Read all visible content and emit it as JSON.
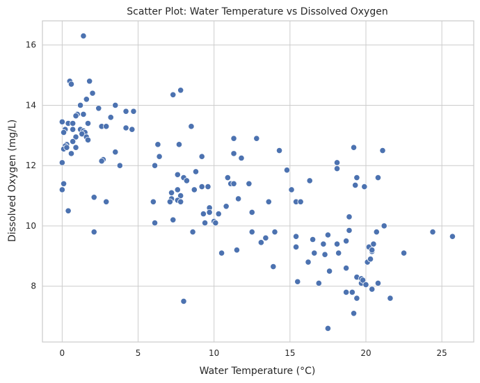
{
  "chart_data": {
    "type": "scatter",
    "title": "Scatter Plot: Water Temperature vs Dissolved Oxygen",
    "xlabel": "Water Temperature (°C)",
    "ylabel": "Dissolved Oxygen (mg/L)",
    "xlim": [
      -1.3,
      27.1
    ],
    "ylim": [
      6.15,
      16.8
    ],
    "xticks": [
      0,
      5,
      10,
      15,
      20,
      25
    ],
    "yticks": [
      8,
      10,
      12,
      14,
      16
    ],
    "xtick_labels": [
      "0",
      "5",
      "10",
      "15",
      "20",
      "25"
    ],
    "ytick_labels": [
      "8",
      "10",
      "12",
      "14",
      "16"
    ],
    "grid": true,
    "color": "#4c72b0",
    "points": [
      {
        "x": 1.4,
        "y": 16.3
      },
      {
        "x": 0.5,
        "y": 14.8
      },
      {
        "x": 1.8,
        "y": 14.8
      },
      {
        "x": 0.6,
        "y": 14.7
      },
      {
        "x": 2.0,
        "y": 14.4
      },
      {
        "x": 1.6,
        "y": 14.2
      },
      {
        "x": 1.2,
        "y": 14.0
      },
      {
        "x": 3.5,
        "y": 14.0
      },
      {
        "x": 2.4,
        "y": 13.9
      },
      {
        "x": 4.2,
        "y": 13.8
      },
      {
        "x": 4.7,
        "y": 13.8
      },
      {
        "x": 1.0,
        "y": 13.7
      },
      {
        "x": 0.9,
        "y": 13.65
      },
      {
        "x": 1.4,
        "y": 13.7
      },
      {
        "x": 3.2,
        "y": 13.6
      },
      {
        "x": 0.0,
        "y": 13.45
      },
      {
        "x": 0.4,
        "y": 13.4
      },
      {
        "x": 0.7,
        "y": 13.4
      },
      {
        "x": 1.7,
        "y": 13.4
      },
      {
        "x": 2.6,
        "y": 13.3
      },
      {
        "x": 2.9,
        "y": 13.3
      },
      {
        "x": 4.2,
        "y": 13.25
      },
      {
        "x": 4.6,
        "y": 13.2
      },
      {
        "x": 0.2,
        "y": 13.2
      },
      {
        "x": 0.7,
        "y": 13.2
      },
      {
        "x": 1.2,
        "y": 13.2
      },
      {
        "x": 1.4,
        "y": 13.15
      },
      {
        "x": 1.5,
        "y": 13.1
      },
      {
        "x": 0.1,
        "y": 13.1
      },
      {
        "x": 1.3,
        "y": 13.05
      },
      {
        "x": 0.9,
        "y": 12.95
      },
      {
        "x": 1.6,
        "y": 12.95
      },
      {
        "x": 1.7,
        "y": 12.85
      },
      {
        "x": 0.7,
        "y": 12.8
      },
      {
        "x": 0.3,
        "y": 12.7
      },
      {
        "x": 0.2,
        "y": 12.65
      },
      {
        "x": 0.9,
        "y": 12.6
      },
      {
        "x": 0.1,
        "y": 12.55
      },
      {
        "x": 0.3,
        "y": 12.6
      },
      {
        "x": 0.6,
        "y": 12.4
      },
      {
        "x": 3.5,
        "y": 12.45
      },
      {
        "x": 2.7,
        "y": 12.2
      },
      {
        "x": 2.6,
        "y": 12.15
      },
      {
        "x": 0.0,
        "y": 12.1
      },
      {
        "x": 3.8,
        "y": 12.0
      },
      {
        "x": 0.1,
        "y": 11.4
      },
      {
        "x": 0.0,
        "y": 11.2
      },
      {
        "x": 2.1,
        "y": 10.95
      },
      {
        "x": 2.9,
        "y": 10.8
      },
      {
        "x": 0.4,
        "y": 10.5
      },
      {
        "x": 2.1,
        "y": 9.8
      },
      {
        "x": 7.8,
        "y": 14.5
      },
      {
        "x": 7.3,
        "y": 14.35
      },
      {
        "x": 8.5,
        "y": 13.3
      },
      {
        "x": 6.3,
        "y": 12.7
      },
      {
        "x": 7.7,
        "y": 12.7
      },
      {
        "x": 6.4,
        "y": 12.3
      },
      {
        "x": 6.1,
        "y": 12.0
      },
      {
        "x": 8.8,
        "y": 11.8
      },
      {
        "x": 7.6,
        "y": 11.7
      },
      {
        "x": 8.0,
        "y": 11.6
      },
      {
        "x": 8.2,
        "y": 11.5
      },
      {
        "x": 9.2,
        "y": 11.3
      },
      {
        "x": 9.6,
        "y": 11.3
      },
      {
        "x": 7.2,
        "y": 11.1
      },
      {
        "x": 7.6,
        "y": 11.2
      },
      {
        "x": 7.8,
        "y": 11.0
      },
      {
        "x": 7.2,
        "y": 10.9
      },
      {
        "x": 7.1,
        "y": 10.8
      },
      {
        "x": 7.6,
        "y": 10.85
      },
      {
        "x": 7.8,
        "y": 10.8
      },
      {
        "x": 6.0,
        "y": 10.8
      },
      {
        "x": 8.7,
        "y": 11.2
      },
      {
        "x": 7.3,
        "y": 10.2
      },
      {
        "x": 6.1,
        "y": 10.1
      },
      {
        "x": 8.6,
        "y": 9.8
      },
      {
        "x": 8.0,
        "y": 7.5
      },
      {
        "x": 9.2,
        "y": 12.3
      },
      {
        "x": 9.7,
        "y": 10.6
      },
      {
        "x": 9.3,
        "y": 10.4
      },
      {
        "x": 9.7,
        "y": 10.45
      },
      {
        "x": 9.4,
        "y": 10.1
      },
      {
        "x": 10.0,
        "y": 10.15
      },
      {
        "x": 10.1,
        "y": 10.1
      },
      {
        "x": 10.3,
        "y": 10.4
      },
      {
        "x": 10.5,
        "y": 9.1
      },
      {
        "x": 11.3,
        "y": 12.9
      },
      {
        "x": 12.8,
        "y": 12.9
      },
      {
        "x": 11.3,
        "y": 12.4
      },
      {
        "x": 11.8,
        "y": 12.25
      },
      {
        "x": 10.9,
        "y": 11.6
      },
      {
        "x": 11.1,
        "y": 11.4
      },
      {
        "x": 11.3,
        "y": 11.4
      },
      {
        "x": 12.3,
        "y": 11.4
      },
      {
        "x": 10.8,
        "y": 10.65
      },
      {
        "x": 11.6,
        "y": 10.9
      },
      {
        "x": 12.5,
        "y": 10.45
      },
      {
        "x": 12.5,
        "y": 9.8
      },
      {
        "x": 11.5,
        "y": 9.2
      },
      {
        "x": 13.1,
        "y": 9.45
      },
      {
        "x": 13.4,
        "y": 9.6
      },
      {
        "x": 14.0,
        "y": 9.8
      },
      {
        "x": 13.6,
        "y": 10.8
      },
      {
        "x": 13.9,
        "y": 8.65
      },
      {
        "x": 14.3,
        "y": 12.5
      },
      {
        "x": 14.8,
        "y": 11.85
      },
      {
        "x": 15.1,
        "y": 11.2
      },
      {
        "x": 15.4,
        "y": 10.8
      },
      {
        "x": 15.7,
        "y": 10.8
      },
      {
        "x": 15.4,
        "y": 9.65
      },
      {
        "x": 15.4,
        "y": 9.3
      },
      {
        "x": 15.5,
        "y": 8.15
      },
      {
        "x": 16.3,
        "y": 11.5
      },
      {
        "x": 16.5,
        "y": 9.55
      },
      {
        "x": 16.2,
        "y": 8.8
      },
      {
        "x": 16.6,
        "y": 9.1
      },
      {
        "x": 16.9,
        "y": 8.1
      },
      {
        "x": 17.2,
        "y": 9.4
      },
      {
        "x": 17.3,
        "y": 9.05
      },
      {
        "x": 17.5,
        "y": 9.7
      },
      {
        "x": 17.6,
        "y": 8.5
      },
      {
        "x": 17.5,
        "y": 6.6
      },
      {
        "x": 18.1,
        "y": 12.1
      },
      {
        "x": 18.1,
        "y": 11.9
      },
      {
        "x": 18.1,
        "y": 9.4
      },
      {
        "x": 18.2,
        "y": 9.1
      },
      {
        "x": 18.7,
        "y": 9.5
      },
      {
        "x": 18.7,
        "y": 8.6
      },
      {
        "x": 18.7,
        "y": 7.8
      },
      {
        "x": 18.9,
        "y": 10.3
      },
      {
        "x": 18.9,
        "y": 9.85
      },
      {
        "x": 19.1,
        "y": 7.8
      },
      {
        "x": 19.2,
        "y": 7.1
      },
      {
        "x": 19.2,
        "y": 12.6
      },
      {
        "x": 19.4,
        "y": 11.6
      },
      {
        "x": 19.3,
        "y": 11.35
      },
      {
        "x": 19.4,
        "y": 8.3
      },
      {
        "x": 19.4,
        "y": 7.6
      },
      {
        "x": 19.7,
        "y": 8.25
      },
      {
        "x": 19.7,
        "y": 8.1
      },
      {
        "x": 19.8,
        "y": 8.2
      },
      {
        "x": 19.9,
        "y": 11.3
      },
      {
        "x": 20.1,
        "y": 8.8
      },
      {
        "x": 20.0,
        "y": 8.05
      },
      {
        "x": 20.2,
        "y": 9.3
      },
      {
        "x": 20.3,
        "y": 8.9
      },
      {
        "x": 20.4,
        "y": 9.15
      },
      {
        "x": 20.5,
        "y": 9.4
      },
      {
        "x": 20.4,
        "y": 9.2
      },
      {
        "x": 20.4,
        "y": 7.9
      },
      {
        "x": 20.7,
        "y": 9.8
      },
      {
        "x": 20.8,
        "y": 11.6
      },
      {
        "x": 20.8,
        "y": 8.1
      },
      {
        "x": 21.1,
        "y": 12.5
      },
      {
        "x": 21.2,
        "y": 10.0
      },
      {
        "x": 21.6,
        "y": 7.6
      },
      {
        "x": 22.5,
        "y": 9.1
      },
      {
        "x": 24.4,
        "y": 9.8
      },
      {
        "x": 25.7,
        "y": 9.65
      }
    ]
  }
}
